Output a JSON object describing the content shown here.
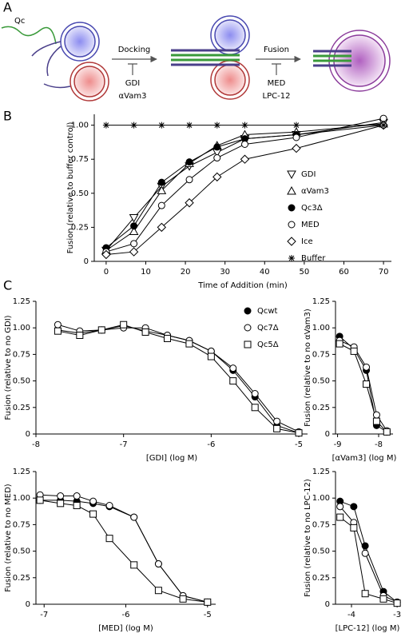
{
  "panel_labels": [
    "A",
    "B",
    "C"
  ],
  "diagram": {
    "qc": "Qc",
    "docking": "Docking",
    "docking_inhibitors": [
      "GDI",
      "αVam3"
    ],
    "fusion": "Fusion",
    "fusion_inhibitors": [
      "MED",
      "LPC-12"
    ]
  },
  "chart_data": [
    {
      "type": "line",
      "xlabel": "Time of Addition (min)",
      "ylabel": "Fusion (relative to buffer control)",
      "x": [
        0,
        7,
        14,
        21,
        28,
        35,
        48,
        70
      ],
      "xlim": [
        -3,
        72
      ],
      "xticks": [
        0,
        10,
        20,
        30,
        40,
        50,
        60,
        70
      ],
      "ylim": [
        0,
        1.08
      ],
      "yticks": [
        0,
        0.25,
        {
          "value": 0.5,
          "label": "0.50"
        },
        0.75,
        {
          "value": 1,
          "label": "1.00"
        }
      ],
      "legend": "right",
      "series": [
        {
          "name": "GDI",
          "color": "#000000",
          "marker": "triangle-down",
          "values": [
            0.08,
            0.32,
            0.55,
            0.7,
            0.8,
            0.9,
            0.93,
            1.02
          ]
        },
        {
          "name": "αVam3",
          "color": "#000000",
          "marker": "triangle-up",
          "values": [
            0.08,
            0.22,
            0.52,
            0.72,
            0.85,
            0.93,
            0.95,
            1.01
          ]
        },
        {
          "name": "Qc3Δ",
          "color": "#000000",
          "marker": "circle-filled",
          "values": [
            0.1,
            0.26,
            0.58,
            0.73,
            0.84,
            0.9,
            0.93,
            1.0
          ]
        },
        {
          "name": "MED",
          "color": "#000000",
          "marker": "circle",
          "values": [
            0.07,
            0.13,
            0.41,
            0.6,
            0.76,
            0.86,
            0.91,
            1.05
          ]
        },
        {
          "name": "Ice",
          "color": "#000000",
          "marker": "diamond",
          "values": [
            0.05,
            0.07,
            0.25,
            0.43,
            0.62,
            0.75,
            0.83,
            1.0
          ]
        },
        {
          "name": "Buffer",
          "color": "#000000",
          "marker": "asterisk",
          "values": [
            1,
            1,
            1,
            1,
            1,
            1,
            1,
            1
          ]
        }
      ]
    },
    {
      "type": "line",
      "xlabel": "[GDI] (log M)",
      "ylabel": "Fusion (relative to no GDI)",
      "x": [
        -7.75,
        -7.5,
        -7.25,
        -7.0,
        -6.75,
        -6.5,
        -6.25,
        -6.0,
        -5.75,
        -5.5,
        -5.25,
        -5.0
      ],
      "xlim": [
        -8,
        -4.9
      ],
      "xticks": [
        -8,
        -7,
        -6,
        -5
      ],
      "ylim": [
        0,
        1.25
      ],
      "yticks": [
        0,
        0.25,
        {
          "value": 0.5,
          "label": "0.50"
        },
        0.75,
        {
          "value": 1,
          "label": "1.00"
        },
        1.25
      ],
      "legend": "upper right",
      "series": [
        {
          "name": "Qcwt",
          "color": "#000000",
          "marker": "circle-filled",
          "values": [
            0.98,
            0.95,
            0.98,
            1.02,
            0.97,
            0.93,
            0.88,
            0.78,
            0.6,
            0.35,
            0.08,
            0.01
          ]
        },
        {
          "name": "Qc7Δ",
          "color": "#000000",
          "marker": "circle",
          "values": [
            1.03,
            0.97,
            0.98,
            1.0,
            1.0,
            0.93,
            0.88,
            0.78,
            0.62,
            0.38,
            0.12,
            0.02
          ]
        },
        {
          "name": "Qc5Δ",
          "color": "#000000",
          "marker": "square",
          "values": [
            0.97,
            0.93,
            0.98,
            1.03,
            0.96,
            0.9,
            0.85,
            0.73,
            0.5,
            0.25,
            0.05,
            0.01
          ]
        }
      ]
    },
    {
      "type": "line",
      "xlabel": "[αVam3] (log M)",
      "ylabel": "Fusion (relative to no αVam3)",
      "x": [
        -8.95,
        -8.6,
        -8.3,
        -8.05,
        -7.8
      ],
      "xlim": [
        -9.05,
        -7.65
      ],
      "xticks": [
        -9,
        -8
      ],
      "ylim": [
        0,
        1.25
      ],
      "yticks": [
        0,
        0.25,
        {
          "value": 0.5,
          "label": "0.50"
        },
        0.75,
        {
          "value": 1,
          "label": "1.00"
        },
        1.25
      ],
      "series": [
        {
          "color": "#000000",
          "marker": "circle-filled",
          "values": [
            0.92,
            0.8,
            0.6,
            0.08,
            0.02
          ]
        },
        {
          "color": "#000000",
          "marker": "circle",
          "values": [
            0.88,
            0.82,
            0.63,
            0.18,
            0.03
          ]
        },
        {
          "color": "#000000",
          "marker": "square",
          "values": [
            0.85,
            0.78,
            0.47,
            0.12,
            0.02
          ]
        }
      ]
    },
    {
      "type": "line",
      "xlabel": "[MED] (log M)",
      "ylabel": "Fusion (relative to no MED)",
      "x": [
        -7.05,
        -6.8,
        -6.6,
        -6.4,
        -6.2,
        -5.9,
        -5.6,
        -5.3,
        -5.0
      ],
      "xlim": [
        -7.1,
        -4.9
      ],
      "xticks": [
        -7,
        -6,
        -5
      ],
      "ylim": [
        0,
        1.25
      ],
      "yticks": [
        0,
        0.25,
        {
          "value": 0.5,
          "label": "0.50"
        },
        0.75,
        {
          "value": 1,
          "label": "1.00"
        },
        1.25
      ],
      "series": [
        {
          "color": "#000000",
          "marker": "circle-filled",
          "values": [
            0.98,
            0.98,
            0.97,
            0.95,
            0.92,
            0.82,
            0.38,
            0.08,
            0.02
          ]
        },
        {
          "color": "#000000",
          "marker": "circle",
          "values": [
            1.03,
            1.02,
            1.02,
            0.97,
            0.93,
            0.82,
            0.38,
            0.08,
            0.02
          ]
        },
        {
          "color": "#000000",
          "marker": "square",
          "values": [
            0.98,
            0.95,
            0.93,
            0.85,
            0.62,
            0.37,
            0.13,
            0.05,
            0.02
          ]
        }
      ]
    },
    {
      "type": "line",
      "xlabel": "[LPC-12] (log M)",
      "ylabel": "Fusion (relative to no LPC-12)",
      "x": [
        -4.25,
        -3.95,
        -3.7,
        -3.3,
        -3.0
      ],
      "xlim": [
        -4.35,
        -2.95
      ],
      "xticks": [
        -4,
        -3
      ],
      "ylim": [
        0,
        1.25
      ],
      "yticks": [
        0,
        0.25,
        {
          "value": 0.5,
          "label": "0.50"
        },
        0.75,
        {
          "value": 1,
          "label": "1.00"
        },
        1.25
      ],
      "series": [
        {
          "color": "#000000",
          "marker": "circle-filled",
          "values": [
            0.97,
            0.92,
            0.55,
            0.12,
            0.02
          ]
        },
        {
          "color": "#000000",
          "marker": "circle",
          "values": [
            0.92,
            0.77,
            0.48,
            0.08,
            0.02
          ]
        },
        {
          "color": "#000000",
          "marker": "square",
          "values": [
            0.82,
            0.72,
            0.1,
            0.05,
            0.01
          ]
        }
      ]
    }
  ]
}
